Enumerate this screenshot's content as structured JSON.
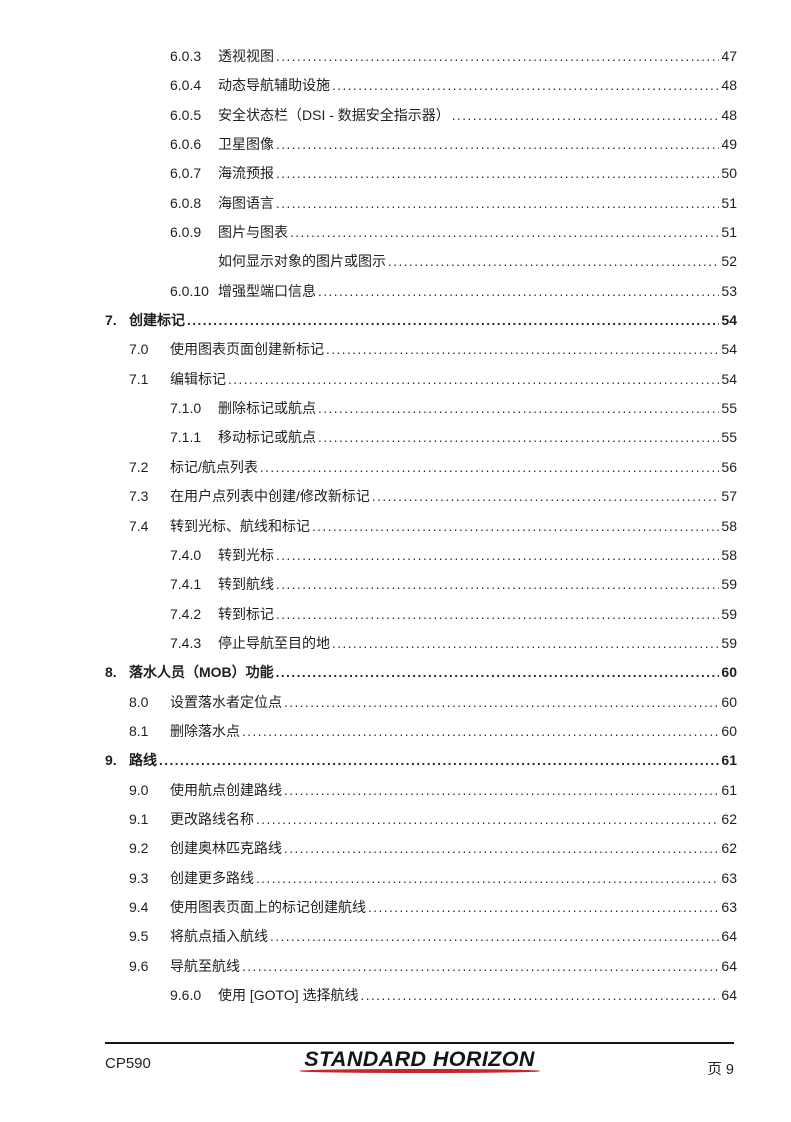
{
  "toc": {
    "items": [
      {
        "level": "subsection",
        "num": "6.0.3",
        "title": "透视视图",
        "page": "47"
      },
      {
        "level": "subsection",
        "num": "6.0.4",
        "title": "动态导航辅助设施",
        "page": "48"
      },
      {
        "level": "subsection",
        "num": "6.0.5",
        "title": "安全状态栏（DSI - 数据安全指示器）",
        "page": "48"
      },
      {
        "level": "subsection",
        "num": "6.0.6",
        "title": "卫星图像",
        "page": "49"
      },
      {
        "level": "subsection",
        "num": "6.0.7",
        "title": "海流预报",
        "page": "50"
      },
      {
        "level": "subsection",
        "num": "6.0.8",
        "title": "海图语言",
        "page": "51"
      },
      {
        "level": "subsection",
        "num": "6.0.9",
        "title": "图片与图表",
        "page": "51"
      },
      {
        "level": "note",
        "num": "",
        "title": "如何显示对象的图片或图示",
        "page": "52"
      },
      {
        "level": "subsection",
        "num": "6.0.10",
        "title": "增强型端口信息",
        "page": "53"
      },
      {
        "level": "chapter",
        "num": "7.",
        "title": "创建标记",
        "page": "54"
      },
      {
        "level": "section",
        "num": "7.0",
        "title": "使用图表页面创建新标记",
        "page": "54"
      },
      {
        "level": "section",
        "num": "7.1",
        "title": "编辑标记",
        "page": "54"
      },
      {
        "level": "subsection",
        "num": "7.1.0",
        "title": "删除标记或航点",
        "page": "55"
      },
      {
        "level": "subsection",
        "num": "7.1.1",
        "title": "移动标记或航点",
        "page": "55"
      },
      {
        "level": "section",
        "num": "7.2",
        "title": "标记/航点列表",
        "page": "56"
      },
      {
        "level": "section",
        "num": "7.3",
        "title": "在用户点列表中创建/修改新标记",
        "page": "57"
      },
      {
        "level": "section",
        "num": "7.4",
        "title": "转到光标、航线和标记",
        "page": "58"
      },
      {
        "level": "subsection",
        "num": "7.4.0",
        "title": "转到光标",
        "page": "58"
      },
      {
        "level": "subsection",
        "num": "7.4.1",
        "title": "转到航线",
        "page": "59"
      },
      {
        "level": "subsection",
        "num": "7.4.2",
        "title": "转到标记",
        "page": "59"
      },
      {
        "level": "subsection",
        "num": "7.4.3",
        "title": "停止导航至目的地",
        "page": "59"
      },
      {
        "level": "chapter",
        "num": "8.",
        "title": "落水人员（MOB）功能",
        "page": "60"
      },
      {
        "level": "section",
        "num": "8.0",
        "title": "设置落水者定位点",
        "page": "60"
      },
      {
        "level": "section",
        "num": "8.1",
        "title": "删除落水点",
        "page": "60"
      },
      {
        "level": "chapter",
        "num": "9.",
        "title": "路线",
        "page": "61"
      },
      {
        "level": "section",
        "num": "9.0",
        "title": "使用航点创建路线",
        "page": "61"
      },
      {
        "level": "section",
        "num": "9.1",
        "title": "更改路线名称",
        "page": "62"
      },
      {
        "level": "section",
        "num": "9.2",
        "title": "创建奥林匹克路线",
        "page": "62"
      },
      {
        "level": "section",
        "num": "9.3",
        "title": "创建更多路线",
        "page": "63"
      },
      {
        "level": "section",
        "num": "9.4",
        "title": "使用图表页面上的标记创建航线",
        "page": "63"
      },
      {
        "level": "section",
        "num": "9.5",
        "title": "将航点插入航线",
        "page": "64"
      },
      {
        "level": "section",
        "num": "9.6",
        "title": "导航至航线",
        "page": "64"
      },
      {
        "level": "subsection",
        "num": "9.6.0",
        "title": "使用 [GOTO] 选择航线",
        "page": "64"
      }
    ]
  },
  "footer": {
    "model": "CP590",
    "logo_text": "STANDARD HORIZON",
    "logo_swoosh_color": "#c1272d",
    "page_label": "页 9"
  }
}
